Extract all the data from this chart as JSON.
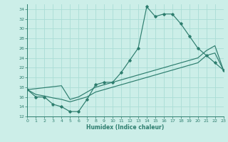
{
  "xlabel": "Humidex (Indice chaleur)",
  "bg_color": "#cceee8",
  "grid_color": "#aaddd5",
  "line_color": "#2d7d6e",
  "x_ticks": [
    0,
    1,
    2,
    3,
    4,
    5,
    6,
    7,
    8,
    9,
    10,
    11,
    12,
    13,
    14,
    15,
    16,
    17,
    18,
    19,
    20,
    21,
    22,
    23
  ],
  "xlim": [
    0,
    23
  ],
  "ylim": [
    12,
    35
  ],
  "y_ticks": [
    12,
    14,
    16,
    18,
    20,
    22,
    24,
    26,
    28,
    30,
    32,
    34
  ],
  "series1": [
    17.5,
    16.0,
    16.0,
    14.5,
    14.0,
    13.0,
    13.0,
    15.5,
    18.5,
    19.0,
    19.0,
    21.0,
    23.5,
    26.0,
    34.5,
    32.5,
    33.0,
    33.0,
    31.0,
    28.5,
    26.0,
    24.5,
    23.0,
    21.5
  ],
  "series2": [
    17.5,
    17.7,
    17.9,
    18.1,
    18.3,
    15.5,
    16.0,
    17.0,
    18.0,
    18.5,
    19.0,
    19.5,
    20.0,
    20.5,
    21.0,
    21.5,
    22.0,
    22.5,
    23.0,
    23.5,
    24.0,
    25.5,
    26.5,
    21.5
  ],
  "series3": [
    17.5,
    16.5,
    16.2,
    15.8,
    15.5,
    15.0,
    15.5,
    16.0,
    17.0,
    17.5,
    18.0,
    18.5,
    19.0,
    19.5,
    20.0,
    20.5,
    21.0,
    21.5,
    22.0,
    22.5,
    23.0,
    24.5,
    25.0,
    21.5
  ]
}
